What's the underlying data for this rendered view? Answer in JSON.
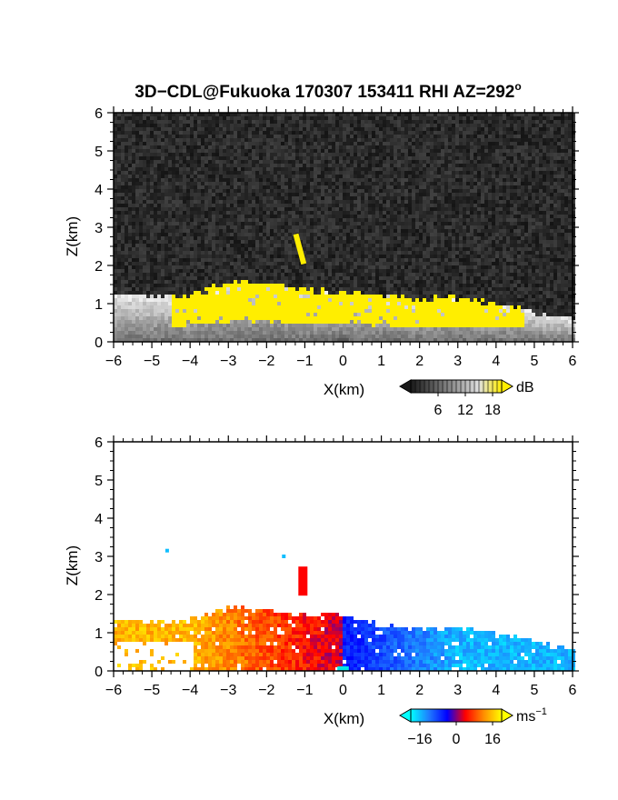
{
  "figure": {
    "title": "3D−CDL@Fukuoka 170307 153411 RHI AZ=292",
    "title_superscript": "o"
  },
  "chart_data": [
    {
      "type": "heatmap",
      "name": "backscatter-intensity",
      "xlabel": "X(km)",
      "ylabel": "Z(km)",
      "xlim": [
        -6,
        6
      ],
      "ylim": [
        0,
        6
      ],
      "xticks": [
        "−6",
        "−5",
        "−4",
        "−3",
        "−2",
        "−1",
        "0",
        "1",
        "2",
        "3",
        "4",
        "5",
        "6"
      ],
      "yticks": [
        "0",
        "1",
        "2",
        "3",
        "4",
        "5",
        "6"
      ],
      "grid": false,
      "background_color": "#262626",
      "high_color": "#ffee00",
      "colorbar": {
        "unit": "dB",
        "ticks": [
          "6",
          "12",
          "18"
        ],
        "tick_values": [
          6,
          12,
          18
        ],
        "range": [
          0,
          20
        ],
        "colors": [
          "#1a1a1a",
          "#5a5a5a",
          "#9a9a9a",
          "#e0e0e0",
          "#ffee00"
        ]
      },
      "layer_top_km": [
        [
          -6,
          1.25
        ],
        [
          -5,
          1.2
        ],
        [
          -4,
          1.2
        ],
        [
          -3,
          1.55
        ],
        [
          -2,
          1.55
        ],
        [
          -1,
          1.35
        ],
        [
          0,
          1.3
        ],
        [
          1,
          1.25
        ],
        [
          2,
          1.1
        ],
        [
          3,
          1.15
        ],
        [
          4,
          1.0
        ],
        [
          5,
          0.75
        ],
        [
          6,
          0.6
        ]
      ],
      "features": [
        {
          "x_km": -1.15,
          "z_km": 2.5,
          "width_km": 0.2
        }
      ]
    },
    {
      "type": "heatmap",
      "name": "radial-velocity",
      "xlabel": "X(km)",
      "ylabel": "Z(km)",
      "xlim": [
        -6,
        6
      ],
      "ylim": [
        0,
        6
      ],
      "xticks": [
        "−6",
        "−5",
        "−4",
        "−3",
        "−2",
        "−1",
        "0",
        "1",
        "2",
        "3",
        "4",
        "5",
        "6"
      ],
      "yticks": [
        "0",
        "1",
        "2",
        "3",
        "4",
        "5",
        "6"
      ],
      "grid": false,
      "colorbar": {
        "unit": "ms",
        "unit_superscript": "−1",
        "ticks": [
          "−16",
          "0",
          "16"
        ],
        "tick_values": [
          -16,
          0,
          16
        ],
        "range": [
          -20,
          20
        ],
        "colors": [
          "#00ffff",
          "#1f7cff",
          "#0000ff",
          "#ff0000",
          "#ff8c00",
          "#ffff00"
        ]
      },
      "layer_top_km": [
        [
          -6,
          1.3
        ],
        [
          -5,
          1.3
        ],
        [
          -4,
          1.3
        ],
        [
          -3,
          1.65
        ],
        [
          -2,
          1.6
        ],
        [
          -1,
          1.5
        ],
        [
          0,
          1.45
        ],
        [
          1,
          1.2
        ],
        [
          2,
          1.1
        ],
        [
          3,
          1.15
        ],
        [
          4,
          1.0
        ],
        [
          5,
          0.75
        ],
        [
          6,
          0.55
        ]
      ],
      "features": [
        {
          "x_km": -4.6,
          "z_km": 3.15,
          "v_ms": -16
        },
        {
          "x_km": -1.55,
          "z_km": 3.0,
          "v_ms": -16
        },
        {
          "x_km": -1.05,
          "z_km": 2.4,
          "v_ms": 4
        }
      ]
    }
  ]
}
